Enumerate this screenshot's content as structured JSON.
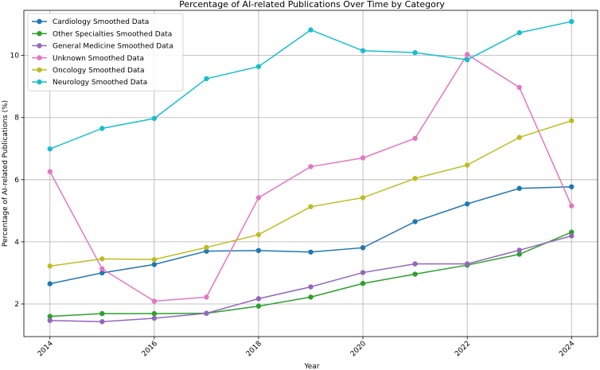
{
  "chart_data": {
    "type": "line",
    "title": "Percentage of AI-related Publications Over Time by Category",
    "xlabel": "Year",
    "ylabel": "Percentage of AI-related Publications (%)",
    "x": [
      2014,
      2015,
      2016,
      2017,
      2018,
      2019,
      2020,
      2021,
      2022,
      2023,
      2024
    ],
    "x_ticks": [
      "2014",
      "2016",
      "2018",
      "2020",
      "2022",
      "2024"
    ],
    "y_ticks": [
      "2",
      "4",
      "6",
      "8",
      "10"
    ],
    "xlim": [
      2013.5,
      2024.5
    ],
    "ylim": [
      0.95,
      11.45
    ],
    "grid": true,
    "legend_position": "top-left",
    "series": [
      {
        "name": "Cardiology Smoothed Data",
        "color": "#1f77b4",
        "values": [
          2.65,
          3.0,
          3.27,
          3.7,
          3.72,
          3.67,
          3.81,
          4.65,
          5.22,
          5.72,
          5.77
        ]
      },
      {
        "name": "Other Specialties Smoothed Data",
        "color": "#2ca02c",
        "values": [
          1.6,
          1.69,
          1.69,
          1.7,
          1.93,
          2.22,
          2.66,
          2.96,
          3.25,
          3.6,
          4.31
        ]
      },
      {
        "name": "General Medicine Smoothed Data",
        "color": "#9467bd",
        "values": [
          1.47,
          1.43,
          1.54,
          1.7,
          2.17,
          2.55,
          3.01,
          3.29,
          3.29,
          3.73,
          4.19
        ]
      },
      {
        "name": "Unknown Smoothed Data",
        "color": "#e377c2",
        "values": [
          6.26,
          3.13,
          2.09,
          2.22,
          5.42,
          6.42,
          6.7,
          7.33,
          10.03,
          8.97,
          5.16
        ]
      },
      {
        "name": "Oncology Smoothed Data",
        "color": "#bcbd22",
        "values": [
          3.22,
          3.45,
          3.43,
          3.82,
          4.23,
          5.13,
          5.42,
          6.04,
          6.47,
          7.36,
          7.9
        ]
      },
      {
        "name": "Neurology Smoothed Data",
        "color": "#17becf",
        "values": [
          6.99,
          7.65,
          7.97,
          9.25,
          9.64,
          10.82,
          10.15,
          10.09,
          9.86,
          10.73,
          11.09
        ]
      }
    ]
  }
}
